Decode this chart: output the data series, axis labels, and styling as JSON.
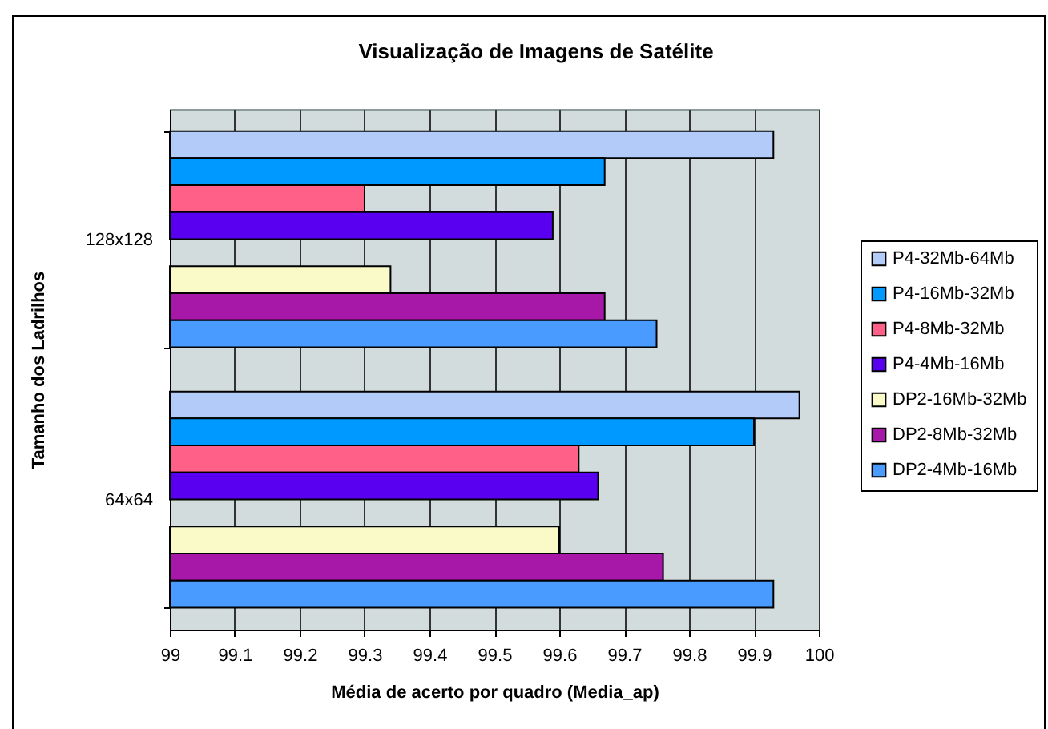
{
  "chart_data": {
    "type": "bar",
    "orientation": "horizontal",
    "title": "Visualização de Imagens de Satélite",
    "xlabel": "Média de acerto por quadro (Media_ap)",
    "ylabel": "Tamanho dos Ladrilhos",
    "categories": [
      "128x128",
      "64x64"
    ],
    "xlim": [
      99,
      100
    ],
    "xticks": [
      99,
      99.1,
      99.2,
      99.3,
      99.4,
      99.5,
      99.6,
      99.7,
      99.8,
      99.9,
      100
    ],
    "grid": "x",
    "legend": "right",
    "series": [
      {
        "name": "P4-32Mb-64Mb",
        "color": "#b3cbf9",
        "values": [
          99.93,
          99.97
        ]
      },
      {
        "name": "P4-16Mb-32Mb",
        "color": "#0099ff",
        "values": [
          99.67,
          99.9
        ]
      },
      {
        "name": "P4-8Mb-32Mb",
        "color": "#ff6088",
        "values": [
          99.3,
          99.63
        ]
      },
      {
        "name": "P4-4Mb-16Mb",
        "color": "#5a00f0",
        "values": [
          99.59,
          99.66
        ]
      },
      {
        "values": [
          null,
          null
        ]
      },
      {
        "name": "DP2-16Mb-32Mb",
        "color": "#fafac8",
        "values": [
          99.34,
          99.6
        ]
      },
      {
        "name": "DP2-8Mb-32Mb",
        "color": "#a818a8",
        "values": [
          99.67,
          99.76
        ]
      },
      {
        "name": "DP2-4Mb-16Mb",
        "color": "#4a9bff",
        "values": [
          99.75,
          99.93
        ]
      }
    ]
  }
}
